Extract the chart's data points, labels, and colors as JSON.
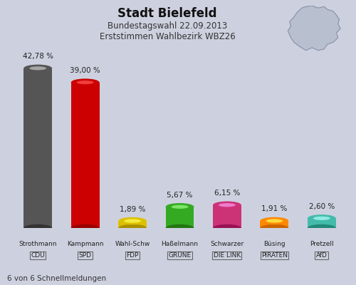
{
  "title": "Stadt Bielefeld",
  "subtitle1": "Bundestagswahl 22.09.2013",
  "subtitle2": "Erststimmen Wahlbezirk WBZ26",
  "person_names": [
    "Strothmann",
    "Kampmann",
    "Wahl-Schw",
    "Haßelmann",
    "Schwarzer",
    "Büsing",
    "Pretzell"
  ],
  "party_names": [
    "CDU",
    "SPD",
    "FDP",
    "GRÜNE",
    "DIE LINK",
    "PIRATEN",
    "AfD"
  ],
  "values": [
    42.78,
    39.0,
    1.89,
    5.67,
    6.15,
    1.91,
    2.6
  ],
  "value_labels": [
    "42,78 %",
    "39,00 %",
    "1,89 %",
    "5,67 %",
    "6,15 %",
    "1,91 %",
    "2,60 %"
  ],
  "bar_colors": [
    "#555555",
    "#cc0000",
    "#ddc000",
    "#33aa22",
    "#cc3377",
    "#ff8800",
    "#44bbaa"
  ],
  "bar_dark_colors": [
    "#333333",
    "#990000",
    "#aa9000",
    "#227711",
    "#991155",
    "#cc6600",
    "#228877"
  ],
  "bg_color": "#cdd1df",
  "footer": "6 von 6 Schnellmeldungen",
  "ylim_max": 50
}
